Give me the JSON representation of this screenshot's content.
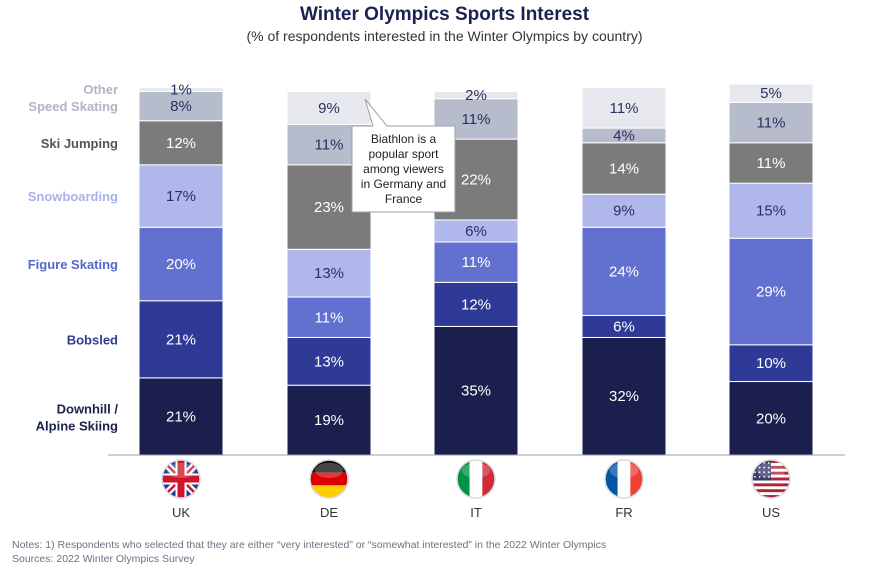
{
  "header": {
    "title": "Winter Olympics Sports Interest",
    "subtitle": "(% of respondents interested in the Winter Olympics by country)"
  },
  "chart_data": {
    "type": "bar",
    "stacked": true,
    "categories": [
      "UK",
      "DE",
      "IT",
      "FR",
      "US"
    ],
    "series": [
      {
        "name": "Downhill / Alpine Skiing",
        "color": "#1b1f4d",
        "label_color": "#1b2150",
        "values": [
          21,
          19,
          35,
          32,
          20
        ]
      },
      {
        "name": "Bobsled",
        "color": "#2f3a96",
        "label_color": "#2f3a96",
        "values": [
          21,
          13,
          12,
          6,
          10
        ]
      },
      {
        "name": "Figure Skating",
        "color": "#6271cf",
        "label_color": "#5867c9",
        "values": [
          20,
          11,
          11,
          24,
          29
        ]
      },
      {
        "name": "Snowboarding",
        "color": "#b0b7ea",
        "label_color": "#a9b1e6",
        "values": [
          17,
          13,
          6,
          9,
          15
        ]
      },
      {
        "name": "Ski Jumping",
        "color": "#7b7b7b",
        "label_color": "#555555",
        "values": [
          12,
          23,
          22,
          14,
          11
        ]
      },
      {
        "name": "Speed Skating",
        "color": "#b7bccd",
        "label_color": "#b0b5c5",
        "values": [
          8,
          11,
          11,
          4,
          11
        ]
      },
      {
        "name": "Other",
        "color": "#e6e8ee",
        "label_color": "#b0b5c5",
        "values": [
          1,
          9,
          2,
          11,
          5
        ]
      }
    ],
    "data_labels": {
      "UK": [
        "21%",
        "21%",
        "20%",
        "17%",
        "12%",
        "8%",
        "1%"
      ],
      "DE": [
        "19%",
        "13%",
        "11%",
        "13%",
        "23%",
        "11%",
        "9%"
      ],
      "IT": [
        "35%",
        "12%",
        "11%",
        "6%",
        "22%",
        "11%",
        "2%"
      ],
      "FR": [
        "32%",
        "6%",
        "24%",
        "9%",
        "14%",
        "4%",
        "11%"
      ],
      "US": [
        "20%",
        "10%",
        "29%",
        "15%",
        "11%",
        "11%",
        "5%"
      ]
    },
    "legend_labels": [
      "Downhill /\nAlpine Skiing",
      "Bobsled",
      "Figure Skating",
      "Snowboarding",
      "Ski Jumping",
      "Speed Skating",
      "Other"
    ],
    "legend_placement": "left",
    "ylim": [
      0,
      100
    ],
    "grid": false,
    "annotation": {
      "category": "DE",
      "text": [
        "Biathlon is a",
        "popular sport",
        "among viewers",
        "in Germany and",
        "France"
      ]
    }
  },
  "flags": [
    {
      "country": "UK",
      "icon": "uk-flag-icon"
    },
    {
      "country": "DE",
      "icon": "germany-flag-icon"
    },
    {
      "country": "IT",
      "icon": "italy-flag-icon"
    },
    {
      "country": "FR",
      "icon": "france-flag-icon"
    },
    {
      "country": "US",
      "icon": "usa-flag-icon"
    }
  ],
  "footer": {
    "notes": "Notes: 1) Respondents who selected that they are either “very interested” or “somewhat interested” in the 2022 Winter Olympics",
    "sources": "Sources: 2022 Winter Olympics Survey"
  }
}
